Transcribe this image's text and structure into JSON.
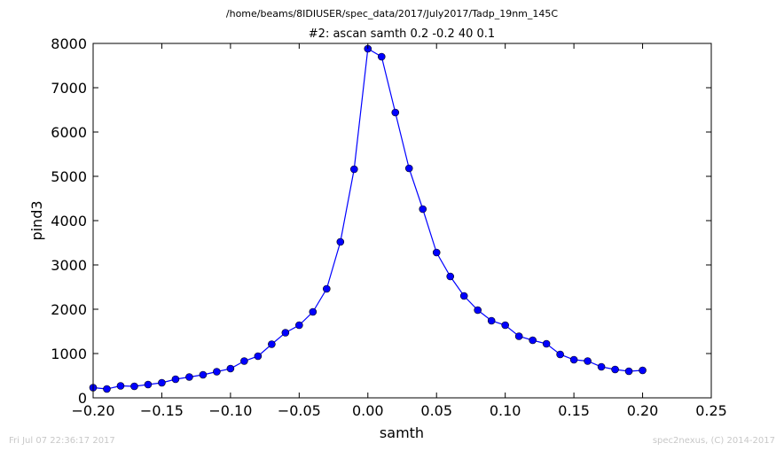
{
  "chart_data": {
    "type": "line",
    "suptitle": "/home/beams/8IDIUSER/spec_data/2017/July2017/Tadp_19nm_145C",
    "title": "#2: ascan  samth 0.2 -0.2  40 0.1",
    "xlabel": "samth",
    "ylabel": "pind3",
    "xlim": [
      -0.2,
      0.25
    ],
    "ylim": [
      0,
      8000
    ],
    "xticks": [
      -0.2,
      -0.15,
      -0.1,
      -0.05,
      0.0,
      0.05,
      0.1,
      0.15,
      0.2,
      0.25
    ],
    "xtick_labels": [
      "−0.20",
      "−0.15",
      "−0.10",
      "−0.05",
      "0.00",
      "0.05",
      "0.10",
      "0.15",
      "0.20",
      "0.25"
    ],
    "yticks": [
      0,
      1000,
      2000,
      3000,
      4000,
      5000,
      6000,
      7000,
      8000
    ],
    "ytick_labels": [
      "0",
      "1000",
      "2000",
      "3000",
      "4000",
      "5000",
      "6000",
      "7000",
      "8000"
    ],
    "grid": false,
    "series": [
      {
        "color": "#0000ff",
        "marker": "circle",
        "x": [
          -0.2,
          -0.19,
          -0.18,
          -0.17,
          -0.16,
          -0.15,
          -0.14,
          -0.13,
          -0.12,
          -0.11,
          -0.1,
          -0.09,
          -0.08,
          -0.07,
          -0.06,
          -0.05,
          -0.04,
          -0.03,
          -0.02,
          -0.01,
          0.0,
          0.01,
          0.02,
          0.03,
          0.04,
          0.05,
          0.06,
          0.07,
          0.08,
          0.09,
          0.1,
          0.11,
          0.12,
          0.13,
          0.14,
          0.15,
          0.16,
          0.17,
          0.18,
          0.19,
          0.2
        ],
        "y": [
          230,
          200,
          270,
          260,
          300,
          340,
          420,
          470,
          520,
          590,
          660,
          830,
          940,
          1210,
          1470,
          1640,
          1940,
          2460,
          3520,
          5160,
          7880,
          7700,
          6440,
          5180,
          4260,
          3280,
          2740,
          2300,
          1980,
          1740,
          1640,
          1390,
          1300,
          1220,
          980,
          860,
          830,
          700,
          640,
          600,
          620
        ]
      }
    ]
  },
  "footer": {
    "left": "Fri Jul 07 22:36:17 2017",
    "right": "spec2nexus, (C) 2014-2017"
  }
}
